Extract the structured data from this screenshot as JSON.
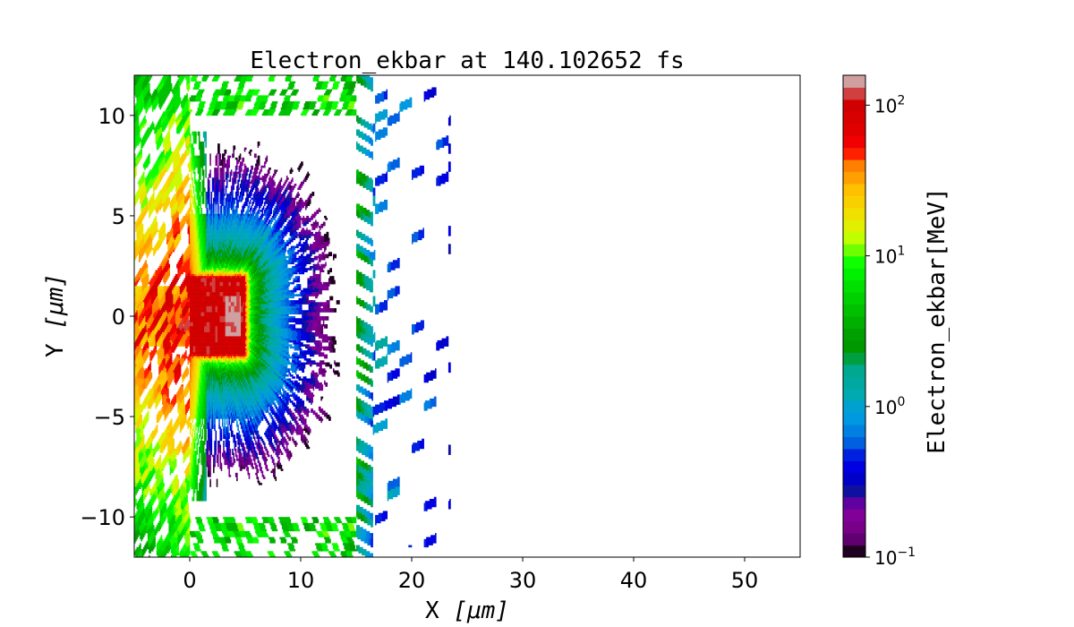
{
  "chart_data": {
    "type": "heatmap",
    "title": "Electron_ekbar at 140.102652 fs",
    "xlabel": "X",
    "xlabel_unit": "[μm]",
    "ylabel": "Y",
    "ylabel_unit": "[μm]",
    "xlim": [
      -5,
      55
    ],
    "ylim": [
      -12,
      12
    ],
    "xticks": [
      0,
      10,
      20,
      30,
      40,
      50
    ],
    "xtick_labels": [
      "0",
      "10",
      "20",
      "30",
      "40",
      "50"
    ],
    "yticks": [
      -10,
      -5,
      0,
      5,
      10
    ],
    "ytick_labels": [
      "−10",
      "−5",
      "0",
      "5",
      "10"
    ],
    "grid": false,
    "colorbar": {
      "label": "Electron_ekbar[MeV]",
      "scale": "log",
      "range": [
        0.1,
        158
      ],
      "ticks": [
        {
          "value": 100,
          "base": "10",
          "exp": "2"
        },
        {
          "value": 10,
          "base": "10",
          "exp": "1"
        },
        {
          "value": 1,
          "base": "10",
          "exp": "0"
        },
        {
          "value": 0.1,
          "base": "10",
          "exp": "−1"
        }
      ],
      "colors_low_to_high": [
        "#200020",
        "#600070",
        "#780088",
        "#800098",
        "#6000a0",
        "#1010a0",
        "#0000c8",
        "#0000e0",
        "#0020e0",
        "#0060e0",
        "#0080e0",
        "#0098e0",
        "#00a0d0",
        "#00aab0",
        "#00a8a0",
        "#00a890",
        "#00a040",
        "#009800",
        "#00a000",
        "#00b000",
        "#00c000",
        "#00d000",
        "#00e000",
        "#00f000",
        "#10ff00",
        "#70ff00",
        "#c0ff00",
        "#e0f000",
        "#f0e000",
        "#f8d000",
        "#ffc000",
        "#ffa000",
        "#ff8000",
        "#ff2000",
        "#f00000",
        "#e00000",
        "#d80000",
        "#d00000",
        "#d04040",
        "#d0a0a0"
      ]
    },
    "regions": [
      {
        "name": "hot core",
        "x_range": [
          0,
          4.9
        ],
        "y_range": [
          -1.9,
          1.9
        ],
        "log10_MeV": 2.0
      },
      {
        "name": "radial fan inside target",
        "x_range": [
          0,
          14
        ],
        "y_range": [
          -9,
          9
        ],
        "log10_MeV_min": -0.9
      },
      {
        "name": "front-side plume",
        "x_range": [
          -5,
          0
        ],
        "y_range": [
          -12,
          12
        ],
        "log10_MeV": [
          0.7,
          1.9
        ]
      },
      {
        "name": "top/bottom walls",
        "x_range": [
          0,
          15
        ],
        "y_abs_range": [
          10,
          12
        ],
        "log10_MeV": [
          0.2,
          1.0
        ]
      },
      {
        "name": "rear wall",
        "x_range": [
          15,
          16.5
        ],
        "y_range": [
          -12,
          12
        ],
        "log10_MeV": [
          -0.2,
          0.6
        ]
      },
      {
        "name": "rear escaping electrons",
        "x_range": [
          16.5,
          23.5
        ],
        "y_range": [
          -11,
          11
        ],
        "log10_MeV": [
          -0.8,
          0.1
        ]
      }
    ]
  }
}
